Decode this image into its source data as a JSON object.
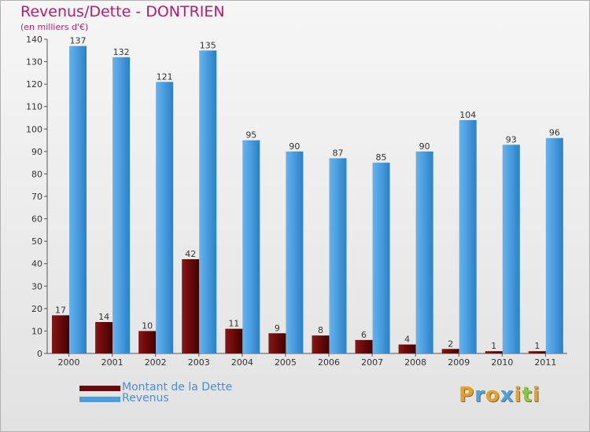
{
  "title": "Revenus/Dette - DONTRIEN",
  "subtitle": "(en milliers d'€)",
  "logo": {
    "letters": [
      "P",
      "r",
      "o",
      "x",
      "i",
      "t",
      "i"
    ],
    "colors": [
      "#e8a020",
      "#4aa3df",
      "#e8a020",
      "#4aa3df",
      "#e8a020",
      "#8dc63f",
      "#e8a020"
    ]
  },
  "legend": [
    {
      "label": "Montant de la Dette",
      "color": "#6b0a0a"
    },
    {
      "label": "Revenus",
      "color": "#4a9ee0"
    }
  ],
  "chart_data": {
    "type": "bar",
    "title": "Revenus/Dette - DONTRIEN",
    "subtitle": "(en milliers d'€)",
    "categories": [
      "2000",
      "2001",
      "2002",
      "2003",
      "2004",
      "2005",
      "2006",
      "2007",
      "2008",
      "2009",
      "2010",
      "2011"
    ],
    "series": [
      {
        "name": "Montant de la Dette",
        "color": "#6b0a0a",
        "values": [
          17,
          14,
          10,
          42,
          11,
          9,
          8,
          6,
          4,
          2,
          1,
          1
        ]
      },
      {
        "name": "Revenus",
        "color": "#4a9ee0",
        "values": [
          137,
          132,
          121,
          135,
          95,
          90,
          87,
          85,
          90,
          104,
          93,
          96
        ]
      }
    ],
    "ylim": [
      0,
      140
    ],
    "yticks": [
      0,
      10,
      20,
      30,
      40,
      50,
      60,
      70,
      80,
      90,
      100,
      110,
      120,
      130,
      140
    ],
    "grid": false,
    "legend_position": "bottom-left"
  }
}
